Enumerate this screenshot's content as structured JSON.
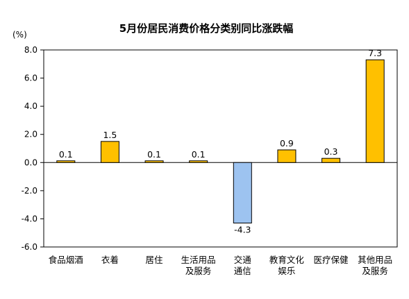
{
  "chart_data": {
    "type": "bar",
    "title": "5月份居民消费价格分类别同比涨跌幅",
    "unit_label": "(%)",
    "ylim": [
      -6.0,
      8.0
    ],
    "yticks": [
      "8.0",
      "6.0",
      "4.0",
      "2.0",
      "0.0",
      "-2.0",
      "-4.0",
      "-6.0"
    ],
    "yticks_values": [
      8,
      6,
      4,
      2,
      0,
      -2,
      -4,
      -6
    ],
    "grid": false,
    "legend": "none",
    "categories": [
      [
        "食品烟酒"
      ],
      [
        "衣着"
      ],
      [
        "居住"
      ],
      [
        "生活用品",
        "及服务"
      ],
      [
        "交通",
        "通信"
      ],
      [
        "教育文化",
        "娱乐"
      ],
      [
        "医疗保健"
      ],
      [
        "其他用品",
        "及服务"
      ]
    ],
    "values": [
      0.1,
      1.5,
      0.1,
      0.1,
      -4.3,
      0.9,
      0.3,
      7.3
    ],
    "value_labels": [
      "0.1",
      "1.5",
      "0.1",
      "0.1",
      "-4.3",
      "0.9",
      "0.3",
      "7.3"
    ],
    "colors": {
      "positive": "#FFC000",
      "negative": "#9DC3F0",
      "bar_outline": "#000000",
      "axis": "#000000"
    }
  }
}
